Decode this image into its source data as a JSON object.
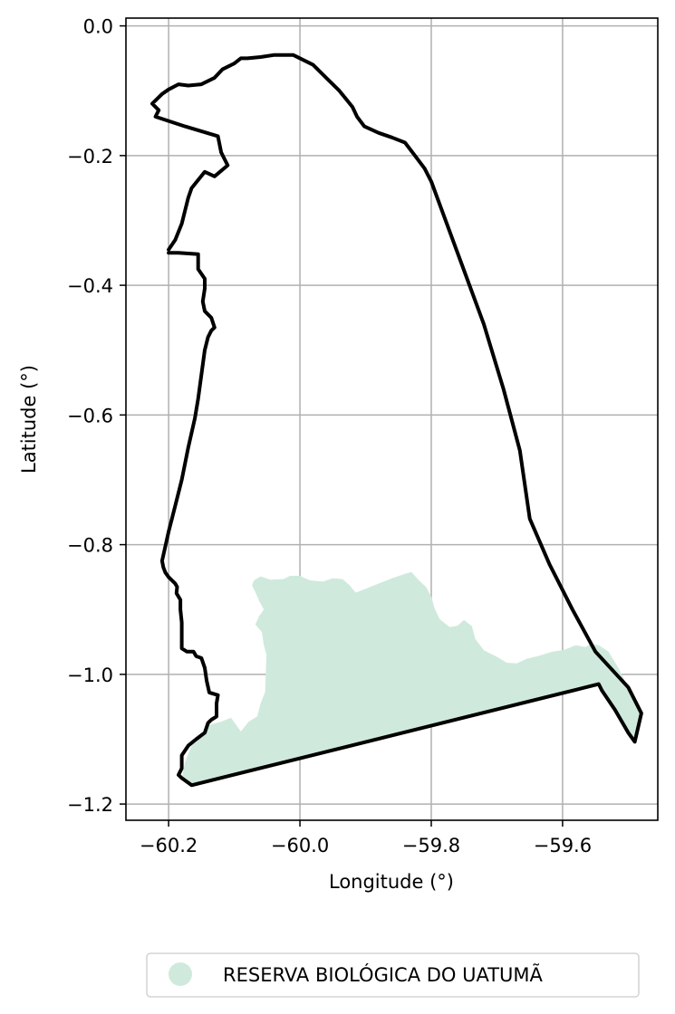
{
  "chart_data": {
    "type": "map",
    "xlabel": "Longitude (°)",
    "ylabel": "Latitude (°)",
    "xlim": [
      -60.265,
      -59.455
    ],
    "ylim": [
      -1.225,
      0.012
    ],
    "x_ticks": [
      {
        "value": -60.2,
        "label": "−60.2"
      },
      {
        "value": -60.0,
        "label": "−60.0"
      },
      {
        "value": -59.8,
        "label": "−59.8"
      },
      {
        "value": -59.6,
        "label": "−59.6"
      }
    ],
    "y_ticks": [
      {
        "value": 0.0,
        "label": "0.0"
      },
      {
        "value": -0.2,
        "label": "−0.2"
      },
      {
        "value": -0.4,
        "label": "−0.4"
      },
      {
        "value": -0.6,
        "label": "−0.6"
      },
      {
        "value": -0.8,
        "label": "−0.8"
      },
      {
        "value": -1.0,
        "label": "−1.0"
      },
      {
        "value": -1.2,
        "label": "−1.2"
      }
    ],
    "grid": true,
    "legend": {
      "position": "bottom-center",
      "entries": [
        {
          "label": "RESERVA BIOLÓGICA DO UATUMÃ",
          "color": "#cfeadc",
          "marker": "circle"
        }
      ]
    },
    "layers": [
      {
        "kind": "fill",
        "color": "#cfeadc",
        "coords": [
          [
            -60.07,
            -0.855
          ],
          [
            -60.06,
            -0.849
          ],
          [
            -60.045,
            -0.854
          ],
          [
            -60.025,
            -0.853
          ],
          [
            -60.015,
            -0.848
          ],
          [
            -60.0,
            -0.848
          ],
          [
            -59.985,
            -0.855
          ],
          [
            -59.965,
            -0.857
          ],
          [
            -59.95,
            -0.852
          ],
          [
            -59.935,
            -0.853
          ],
          [
            -59.925,
            -0.862
          ],
          [
            -59.915,
            -0.874
          ],
          [
            -59.89,
            -0.864
          ],
          [
            -59.86,
            -0.852
          ],
          [
            -59.84,
            -0.845
          ],
          [
            -59.83,
            -0.842
          ],
          [
            -59.82,
            -0.854
          ],
          [
            -59.808,
            -0.865
          ],
          [
            -59.8,
            -0.88
          ],
          [
            -59.795,
            -0.898
          ],
          [
            -59.787,
            -0.915
          ],
          [
            -59.772,
            -0.927
          ],
          [
            -59.76,
            -0.925
          ],
          [
            -59.75,
            -0.916
          ],
          [
            -59.738,
            -0.926
          ],
          [
            -59.733,
            -0.945
          ],
          [
            -59.72,
            -0.963
          ],
          [
            -59.7,
            -0.973
          ],
          [
            -59.685,
            -0.982
          ],
          [
            -59.67,
            -0.983
          ],
          [
            -59.655,
            -0.976
          ],
          [
            -59.635,
            -0.971
          ],
          [
            -59.615,
            -0.965
          ],
          [
            -59.597,
            -0.962
          ],
          [
            -59.58,
            -0.955
          ],
          [
            -59.565,
            -0.958
          ],
          [
            -59.558,
            -0.953
          ],
          [
            -59.545,
            -0.955
          ],
          [
            -59.53,
            -0.965
          ],
          [
            -59.515,
            -0.99
          ],
          [
            -59.5,
            -1.02
          ],
          [
            -59.48,
            -1.06
          ],
          [
            -59.49,
            -1.104
          ],
          [
            -59.5,
            -1.09
          ],
          [
            -59.52,
            -1.055
          ],
          [
            -59.54,
            -1.025
          ],
          [
            -59.545,
            -1.015
          ],
          [
            -60.165,
            -1.171
          ],
          [
            -60.18,
            -1.16
          ],
          [
            -60.175,
            -1.135
          ],
          [
            -60.165,
            -1.11
          ],
          [
            -60.15,
            -1.092
          ],
          [
            -60.138,
            -1.078
          ],
          [
            -60.12,
            -1.073
          ],
          [
            -60.105,
            -1.067
          ],
          [
            -60.09,
            -1.088
          ],
          [
            -60.078,
            -1.073
          ],
          [
            -60.065,
            -1.065
          ],
          [
            -60.06,
            -1.045
          ],
          [
            -60.053,
            -1.027
          ],
          [
            -60.052,
            -0.995
          ],
          [
            -60.051,
            -0.97
          ],
          [
            -60.055,
            -0.955
          ],
          [
            -60.058,
            -0.935
          ],
          [
            -60.068,
            -0.923
          ],
          [
            -60.062,
            -0.91
          ],
          [
            -60.055,
            -0.9
          ],
          [
            -60.062,
            -0.887
          ],
          [
            -60.068,
            -0.873
          ],
          [
            -60.073,
            -0.863
          ]
        ]
      },
      {
        "kind": "outline",
        "color": "#000000",
        "coords": [
          [
            -60.2,
            -0.345
          ],
          [
            -60.19,
            -0.33
          ],
          [
            -60.18,
            -0.305
          ],
          [
            -60.175,
            -0.285
          ],
          [
            -60.17,
            -0.265
          ],
          [
            -60.165,
            -0.25
          ],
          [
            -60.145,
            -0.225
          ],
          [
            -60.13,
            -0.232
          ],
          [
            -60.11,
            -0.215
          ],
          [
            -60.12,
            -0.195
          ],
          [
            -60.125,
            -0.17
          ],
          [
            -60.175,
            -0.155
          ],
          [
            -60.22,
            -0.14
          ],
          [
            -60.215,
            -0.13
          ],
          [
            -60.225,
            -0.12
          ],
          [
            -60.21,
            -0.105
          ],
          [
            -60.2,
            -0.098
          ],
          [
            -60.185,
            -0.09
          ],
          [
            -60.17,
            -0.092
          ],
          [
            -60.15,
            -0.09
          ],
          [
            -60.13,
            -0.08
          ],
          [
            -60.118,
            -0.067
          ],
          [
            -60.1,
            -0.058
          ],
          [
            -60.09,
            -0.05
          ],
          [
            -60.08,
            -0.05
          ],
          [
            -60.06,
            -0.048
          ],
          [
            -60.04,
            -0.045
          ],
          [
            -60.01,
            -0.045
          ],
          [
            -59.98,
            -0.06
          ],
          [
            -59.96,
            -0.08
          ],
          [
            -59.94,
            -0.1
          ],
          [
            -59.92,
            -0.125
          ],
          [
            -59.913,
            -0.14
          ],
          [
            -59.902,
            -0.155
          ],
          [
            -59.88,
            -0.165
          ],
          [
            -59.86,
            -0.172
          ],
          [
            -59.84,
            -0.18
          ],
          [
            -59.825,
            -0.2
          ],
          [
            -59.81,
            -0.22
          ],
          [
            -59.8,
            -0.24
          ],
          [
            -59.76,
            -0.35
          ],
          [
            -59.72,
            -0.46
          ],
          [
            -59.69,
            -0.56
          ],
          [
            -59.665,
            -0.655
          ],
          [
            -59.65,
            -0.76
          ],
          [
            -59.62,
            -0.83
          ],
          [
            -59.585,
            -0.9
          ],
          [
            -59.55,
            -0.965
          ],
          [
            -59.5,
            -1.02
          ],
          [
            -59.48,
            -1.06
          ],
          [
            -59.49,
            -1.104
          ],
          [
            -59.5,
            -1.09
          ],
          [
            -59.52,
            -1.055
          ],
          [
            -59.54,
            -1.025
          ],
          [
            -59.545,
            -1.015
          ],
          [
            -60.165,
            -1.171
          ],
          [
            -60.18,
            -1.16
          ],
          [
            -60.185,
            -1.155
          ],
          [
            -60.18,
            -1.145
          ],
          [
            -60.18,
            -1.125
          ],
          [
            -60.17,
            -1.11
          ],
          [
            -60.158,
            -1.1
          ],
          [
            -60.145,
            -1.09
          ],
          [
            -60.14,
            -1.075
          ],
          [
            -60.135,
            -1.07
          ],
          [
            -60.127,
            -1.065
          ],
          [
            -60.127,
            -1.045
          ],
          [
            -60.125,
            -1.032
          ],
          [
            -60.138,
            -1.028
          ],
          [
            -60.142,
            -1.01
          ],
          [
            -60.145,
            -0.99
          ],
          [
            -60.15,
            -0.975
          ],
          [
            -60.158,
            -0.972
          ],
          [
            -60.162,
            -0.965
          ],
          [
            -60.172,
            -0.965
          ],
          [
            -60.18,
            -0.96
          ],
          [
            -60.18,
            -0.92
          ],
          [
            -60.182,
            -0.9
          ],
          [
            -60.182,
            -0.885
          ],
          [
            -60.188,
            -0.875
          ],
          [
            -60.187,
            -0.865
          ],
          [
            -60.19,
            -0.86
          ],
          [
            -60.2,
            -0.85
          ],
          [
            -60.205,
            -0.843
          ],
          [
            -60.208,
            -0.835
          ],
          [
            -60.21,
            -0.825
          ],
          [
            -60.2,
            -0.78
          ],
          [
            -60.19,
            -0.74
          ],
          [
            -60.18,
            -0.7
          ],
          [
            -60.17,
            -0.65
          ],
          [
            -60.16,
            -0.605
          ],
          [
            -60.155,
            -0.575
          ],
          [
            -60.145,
            -0.5
          ],
          [
            -60.14,
            -0.48
          ],
          [
            -60.135,
            -0.47
          ],
          [
            -60.13,
            -0.465
          ],
          [
            -60.135,
            -0.45
          ],
          [
            -60.145,
            -0.44
          ],
          [
            -60.148,
            -0.425
          ],
          [
            -60.145,
            -0.405
          ],
          [
            -60.145,
            -0.39
          ],
          [
            -60.155,
            -0.375
          ],
          [
            -60.155,
            -0.352
          ],
          [
            -60.185,
            -0.35
          ],
          [
            -60.2,
            -0.35
          ]
        ]
      }
    ]
  }
}
